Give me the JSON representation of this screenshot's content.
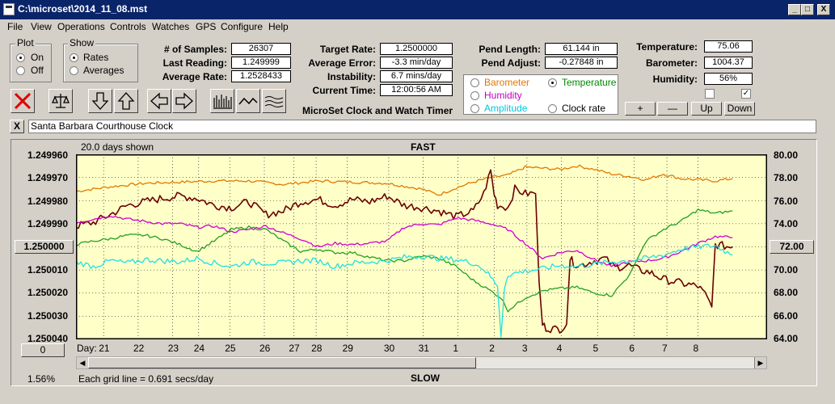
{
  "window": {
    "title": "C:\\microset\\2014_11_08.mst",
    "min": "_",
    "max": "□",
    "close": "X"
  },
  "menu": [
    "File",
    "View",
    "Operations",
    "Controls",
    "Watches",
    "GPS",
    "Configure",
    "Help"
  ],
  "plot_group": {
    "title": "Plot",
    "options": [
      "On",
      "Off"
    ],
    "selected": "On"
  },
  "show_group": {
    "title": "Show",
    "options": [
      "Rates",
      "Averages"
    ],
    "selected": "Rates"
  },
  "stats": {
    "samples_label": "# of Samples:",
    "samples": "26307",
    "last_label": "Last Reading:",
    "last": "1.249999",
    "avg_label": "Average Rate:",
    "avg": "1.2528433",
    "target_label": "Target Rate:",
    "target": "1.2500000",
    "averr_label": "Average Error:",
    "averr": "-3.3 min/day",
    "instab_label": "Instability:",
    "instab": "6.7 mins/day",
    "time_label": "Current Time:",
    "time": "12:00:56 AM",
    "pendlen_label": "Pend Length:",
    "pendlen": "61.144 in",
    "pendadj_label": "Pend Adjust:",
    "pendadj": "-0.27848 in",
    "temp_label": "Temperature:",
    "temp": "75.06",
    "baro_label": "Barometer:",
    "baro": "1004.37",
    "hum_label": "Humidity:",
    "hum": "56%"
  },
  "app_caption": "MicroSet Clock and Watch Timer",
  "sensor_radios": [
    {
      "label": "Barometer",
      "color": "#e07800",
      "selected": false
    },
    {
      "label": "Temperature",
      "color": "#008800",
      "selected": true
    },
    {
      "label": "Humidity",
      "color": "#c000c0",
      "selected": false
    },
    {
      "label": "Clock rate",
      "color": "#000000",
      "selected": false
    },
    {
      "label": "Amplitude",
      "color": "#00c8e0",
      "selected": false
    }
  ],
  "scale_buttons": [
    "+",
    "—",
    "Up",
    "Down"
  ],
  "checkboxes": [
    {
      "checked": false
    },
    {
      "checked": true
    }
  ],
  "toolbar_icons": [
    "delete-icon",
    "balance-icon",
    "arrow-down-icon",
    "arrow-up-icon",
    "arrow-left-icon",
    "arrow-right-icon",
    "bars-chart-icon",
    "wave-chart-icon",
    "smooth-chart-icon"
  ],
  "clock_name": {
    "x": "X",
    "value": "Santa Barbara Courthouse Clock"
  },
  "chart_panel": {
    "center_button": "1.250000",
    "left_button": "0",
    "right_button": "72.00",
    "percent": "1.56%"
  },
  "chart_data": {
    "type": "line",
    "title": "FAST",
    "bottom_title": "SLOW",
    "days_shown": "20.0 days shown",
    "grid_note": "Each grid line = 0.691 secs/day",
    "x_axis_label": "Day:",
    "x_ticks": [
      "21",
      "22",
      "23",
      "24",
      "25",
      "26",
      "27",
      "28",
      "29",
      "30",
      "31",
      "1",
      "2",
      "3",
      "4",
      "5",
      "6",
      "7",
      "8"
    ],
    "x_range": [
      0,
      20
    ],
    "x_tick_positions": [
      0.8,
      1.8,
      2.8,
      3.55,
      4.45,
      5.45,
      6.3,
      6.95,
      7.85,
      9.05,
      10.05,
      11.05,
      12.1,
      13.05,
      14.05,
      15.1,
      16.15,
      17.1,
      18.0
    ],
    "y_left_ticks": [
      "1.249960",
      "1.249970",
      "1.249980",
      "1.249990",
      "1.250000",
      "1.250010",
      "1.250020",
      "1.250030",
      "1.250040"
    ],
    "y_left_range": [
      1.24996,
      1.25004
    ],
    "y_right_ticks": [
      "80.00",
      "78.00",
      "76.00",
      "74.00",
      "72.00",
      "70.00",
      "68.00",
      "66.00",
      "64.00"
    ],
    "y_right_range": [
      64,
      80
    ],
    "plot_background": "#ffffc8",
    "series": [
      {
        "color": "#e07800",
        "width": 1.3,
        "x": [
          0,
          1,
          2,
          3,
          4,
          5,
          6,
          7,
          8,
          9,
          10,
          10.5,
          11,
          11.5,
          12,
          12.5,
          13,
          13.5,
          14,
          14.5,
          15,
          15.5,
          16,
          16.5,
          17,
          17.5,
          18,
          18.5,
          19
        ],
        "y": [
          76.8,
          77.2,
          77.5,
          77.6,
          77.7,
          77.7,
          77.4,
          77.7,
          77.6,
          77.5,
          77.0,
          76.5,
          77.1,
          77.6,
          78.0,
          78.2,
          78.9,
          78.8,
          78.7,
          79.0,
          78.7,
          78.3,
          78.1,
          77.8,
          78.3,
          77.9,
          77.8,
          77.7,
          77.9
        ]
      },
      {
        "color": "#6b0000",
        "width": 1.6,
        "x": [
          0,
          0.5,
          1,
          1.5,
          2,
          2.5,
          3,
          3.5,
          4,
          4.5,
          5,
          5.5,
          6,
          6.5,
          7,
          7.5,
          8,
          8.5,
          9,
          9.5,
          10,
          10.5,
          11,
          11.5,
          11.8,
          12,
          12.1,
          12.2,
          12.5,
          12.7,
          13,
          13.3,
          13.4,
          13.5,
          13.6,
          13.8,
          14,
          14.2,
          14.3,
          14.4,
          14.6,
          14.8,
          15,
          15.3,
          15.6,
          16,
          16.3,
          16.6,
          17,
          17.3,
          17.6,
          18,
          18.2,
          18.4,
          18.5,
          18.7,
          18.9,
          19
        ],
        "y": [
          73.8,
          74.1,
          74.8,
          75.6,
          75.9,
          76.2,
          76.4,
          76.2,
          75.6,
          75.4,
          75.9,
          74.8,
          75.1,
          75.9,
          76.1,
          75.6,
          76.1,
          75.9,
          76.4,
          75.6,
          75.4,
          75.1,
          74.6,
          75.1,
          76.6,
          78.6,
          76.6,
          75.6,
          75.4,
          77.0,
          76.6,
          76.6,
          69.0,
          65.3,
          65.0,
          64.9,
          64.9,
          65.3,
          71.0,
          70.6,
          70.4,
          70.6,
          70.8,
          71.0,
          70.2,
          70.4,
          70.0,
          69.8,
          69.2,
          69.0,
          68.8,
          68.6,
          67.9,
          66.8,
          72.2,
          72.1,
          72.0,
          72.0
        ]
      },
      {
        "color": "#d000d0",
        "width": 1.3,
        "x": [
          0,
          0.5,
          1,
          1.5,
          2,
          2.5,
          3,
          3.5,
          4,
          4.5,
          5,
          5.5,
          6,
          6.3,
          6.6,
          7,
          7.5,
          8,
          8.5,
          9,
          9.5,
          10,
          10.5,
          11,
          11.5,
          12,
          12.5,
          13,
          13.5,
          14,
          14.5,
          15,
          15.5,
          16,
          16.5,
          17,
          17.5,
          18,
          18.5,
          19
        ],
        "y": [
          74.1,
          74.4,
          74.7,
          74.4,
          74.2,
          74.0,
          74.0,
          73.7,
          73.8,
          73.3,
          73.5,
          73.8,
          73.2,
          72.9,
          72.6,
          72.0,
          72.3,
          72.2,
          72.3,
          72.5,
          73.7,
          74.0,
          73.9,
          74.5,
          74.3,
          74.0,
          73.5,
          72.3,
          71.0,
          71.5,
          71.7,
          70.9,
          70.3,
          70.7,
          70.8,
          71.0,
          71.6,
          72.3,
          72.9,
          72.8
        ]
      },
      {
        "color": "#20a020",
        "width": 1.3,
        "x": [
          0,
          0.5,
          1,
          1.5,
          2,
          2.5,
          3,
          3.5,
          4,
          4.5,
          5,
          5.5,
          6,
          6.5,
          7,
          7.5,
          8,
          8.5,
          9,
          9.5,
          10,
          10.5,
          11,
          11.5,
          12,
          12.3,
          12.5,
          13,
          13.5,
          14,
          14.5,
          15,
          15.5,
          16,
          16.5,
          17,
          17.5,
          18,
          18.5,
          19
        ],
        "y": [
          72.2,
          72.5,
          72.7,
          73.0,
          73.0,
          72.7,
          72.2,
          71.6,
          72.5,
          73.5,
          73.7,
          73.5,
          72.5,
          71.6,
          71.8,
          71.5,
          71.5,
          71.1,
          70.8,
          70.8,
          71.2,
          71.0,
          70.3,
          69.1,
          68.2,
          67.6,
          66.5,
          67.6,
          68.2,
          68.4,
          68.5,
          68.0,
          67.8,
          69.5,
          72.5,
          73.5,
          74.2,
          75.2,
          74.9,
          75.1
        ]
      },
      {
        "color": "#20e0e0",
        "width": 1.3,
        "x": [
          0,
          0.5,
          1,
          1.5,
          2,
          2.5,
          3,
          3.5,
          4,
          4.5,
          5,
          5.5,
          6,
          6.5,
          7,
          7.5,
          8,
          8.5,
          9,
          9.5,
          10,
          10.5,
          11,
          11.5,
          11.8,
          12,
          12.2,
          12.3,
          12.4,
          12.5,
          13,
          13.5,
          14,
          14.5,
          15,
          15.5,
          16,
          16.5,
          17,
          17.5,
          18,
          18.5,
          19
        ],
        "y": [
          70.7,
          70.3,
          70.8,
          70.6,
          70.9,
          70.8,
          70.7,
          71.0,
          70.6,
          70.3,
          70.7,
          70.6,
          70.6,
          70.8,
          70.8,
          70.3,
          70.6,
          70.7,
          70.8,
          71.1,
          71.2,
          71.0,
          70.9,
          70.6,
          70.1,
          69.4,
          68.6,
          64.2,
          68.5,
          69.6,
          69.9,
          70.1,
          70.4,
          70.3,
          70.5,
          70.7,
          70.8,
          71.0,
          71.3,
          71.8,
          72.0,
          72.1,
          71.3
        ]
      }
    ]
  }
}
